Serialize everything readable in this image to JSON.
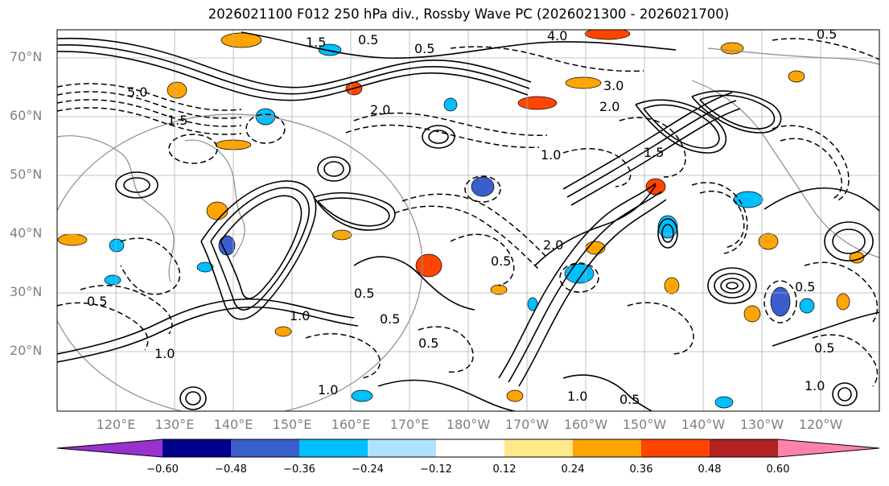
{
  "title": "2026021100 F012 250 hPa div., Rossby Wave PC (2026021300 - 2026021700)",
  "latitude_labels": [
    "70°N",
    "60°N",
    "50°N",
    "40°N",
    "30°N",
    "20°N"
  ],
  "longitude_labels": [
    "120°E",
    "130°E",
    "140°E",
    "150°E",
    "160°E",
    "170°E",
    "180°W",
    "170°W",
    "160°W",
    "150°W",
    "140°W",
    "130°W",
    "120°W"
  ],
  "colorbar": {
    "tick_labels": [
      "−0.60",
      "−0.48",
      "−0.36",
      "−0.24",
      "−0.12",
      "0.12",
      "0.24",
      "0.36",
      "0.48",
      "0.60"
    ],
    "colors": [
      "#9932cc",
      "#00008b",
      "#3a5fcd",
      "#00bfff",
      "#b0e2ff",
      "#ffffff",
      "#ffe98a",
      "#ffa500",
      "#ff4500",
      "#b22222",
      "#ff82ab"
    ]
  },
  "contour_labels": [
    "1.5",
    "0.5",
    "4.0",
    "0.5",
    "3.0",
    "2.0",
    "5.0",
    "1.5",
    "1.0",
    "2.0",
    "0.5",
    "0.5",
    "1.0",
    "0.5",
    "1.0",
    "0.5",
    "0.5",
    "1.0",
    "1.0",
    "1.5",
    "0.5",
    "0.5",
    "0.5",
    "1.0",
    "2.0",
    "0.5"
  ],
  "shading_colors": {
    "positive_weak": "#ffe98a",
    "positive": "#ffa500",
    "positive_strong": "#ff4500",
    "negative_weak": "#b0e2ff",
    "negative": "#00bfff",
    "negative_strong": "#3a5fcd"
  }
}
